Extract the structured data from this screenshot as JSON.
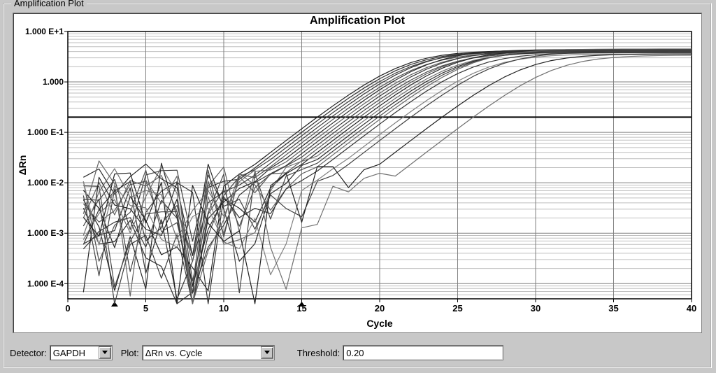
{
  "panel": {
    "title": "Amplification Plot"
  },
  "chart": {
    "title": "Amplification Plot",
    "type": "line",
    "xlabel": "Cycle",
    "ylabel": "ΔRn",
    "label_fontsize": 14,
    "title_fontsize": 16,
    "background_color": "#ffffff",
    "grid_major_color": "#808080",
    "grid_minor_color": "#bfbfbf",
    "axis_color": "#000000",
    "xscale": "linear",
    "yscale": "log",
    "xlim": [
      0,
      40
    ],
    "ylim": [
      5e-05,
      10
    ],
    "xtick_step": 5,
    "xticks": [
      0,
      5,
      10,
      15,
      20,
      25,
      30,
      35,
      40
    ],
    "yticks": [
      0.0001,
      0.001,
      0.01,
      0.1,
      1.0,
      10.0
    ],
    "ytick_labels": [
      "1.000 E-4",
      "1.000 E-3",
      "1.000 E-2",
      "1.000 E-1",
      "1.000",
      "1.000 E+1"
    ],
    "threshold": {
      "value": 0.2,
      "color": "#000000",
      "width": 2
    },
    "markers": {
      "shape": "triangle-up",
      "color": "#000000",
      "size": 5,
      "x_positions": [
        3,
        15
      ]
    },
    "line_width": 1.2,
    "series": [
      {
        "color": "#202020",
        "ct": 16.0,
        "plateau": 4.2,
        "noise_seed": 1
      },
      {
        "color": "#303030",
        "ct": 16.3,
        "plateau": 4.1,
        "noise_seed": 2
      },
      {
        "color": "#404040",
        "ct": 16.6,
        "plateau": 4.0,
        "noise_seed": 3
      },
      {
        "color": "#353535",
        "ct": 16.9,
        "plateau": 4.3,
        "noise_seed": 4
      },
      {
        "color": "#505050",
        "ct": 17.2,
        "plateau": 3.9,
        "noise_seed": 5
      },
      {
        "color": "#282828",
        "ct": 17.5,
        "plateau": 4.4,
        "noise_seed": 6
      },
      {
        "color": "#606060",
        "ct": 17.8,
        "plateau": 4.0,
        "noise_seed": 7
      },
      {
        "color": "#383838",
        "ct": 18.1,
        "plateau": 4.2,
        "noise_seed": 8
      },
      {
        "color": "#484848",
        "ct": 18.4,
        "plateau": 3.8,
        "noise_seed": 9
      },
      {
        "color": "#555555",
        "ct": 18.7,
        "plateau": 4.1,
        "noise_seed": 10
      },
      {
        "color": "#252525",
        "ct": 19.0,
        "plateau": 4.3,
        "noise_seed": 11
      },
      {
        "color": "#707070",
        "ct": 19.3,
        "plateau": 3.9,
        "noise_seed": 12
      },
      {
        "color": "#2a2a2a",
        "ct": 19.6,
        "plateau": 4.0,
        "noise_seed": 13
      },
      {
        "color": "#454545",
        "ct": 19.9,
        "plateau": 4.2,
        "noise_seed": 14
      },
      {
        "color": "#656565",
        "ct": 20.2,
        "plateau": 4.5,
        "noise_seed": 15
      },
      {
        "color": "#333333",
        "ct": 20.6,
        "plateau": 3.8,
        "noise_seed": 16
      },
      {
        "color": "#808080",
        "ct": 21.5,
        "plateau": 3.6,
        "noise_seed": 17
      },
      {
        "color": "#404040",
        "ct": 22.0,
        "plateau": 4.0,
        "noise_seed": 18
      },
      {
        "color": "#202020",
        "ct": 24.0,
        "plateau": 3.6,
        "noise_seed": 19
      },
      {
        "color": "#707070",
        "ct": 26.0,
        "plateau": 3.4,
        "noise_seed": 20
      }
    ]
  },
  "controls": {
    "detector_label": "Detector:",
    "detector_value": "GAPDH",
    "plot_label": "Plot:",
    "plot_value": "ΔRn vs. Cycle",
    "threshold_label": "Threshold:",
    "threshold_value": "0.20"
  }
}
